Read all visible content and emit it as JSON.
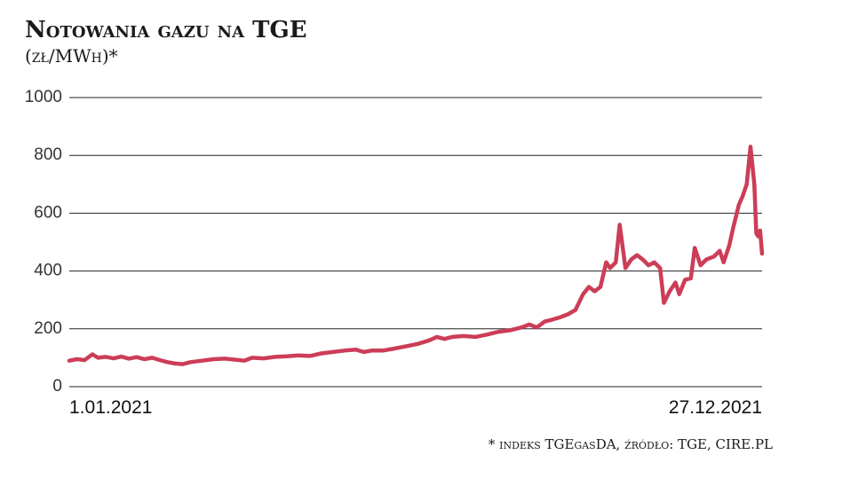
{
  "chart_data": {
    "type": "line",
    "title": "Notowania gazu na TGE",
    "subtitle": "(zł/MWh)*",
    "note": "* indeks TGEgasDA, źródło: TGE, CIRE.PL",
    "x": [
      1,
      5,
      9,
      13,
      16,
      20,
      24,
      28,
      32,
      36,
      40,
      44,
      48,
      52,
      56,
      60,
      64,
      70,
      76,
      82,
      88,
      92,
      96,
      102,
      108,
      114,
      120,
      126,
      132,
      138,
      144,
      150,
      154,
      158,
      164,
      170,
      176,
      182,
      188,
      192,
      196,
      200,
      206,
      212,
      218,
      224,
      230,
      236,
      240,
      244,
      248,
      252,
      256,
      260,
      264,
      268,
      271,
      274,
      277,
      280,
      282,
      285,
      287,
      290,
      293,
      296,
      299,
      302,
      305,
      308,
      310,
      313,
      316,
      318,
      321,
      324,
      326,
      329,
      332,
      336,
      339,
      341,
      344,
      346,
      349,
      351,
      353,
      355,
      357,
      358,
      359,
      360,
      361
    ],
    "series": [
      {
        "name": "TGEgasDA",
        "color": "#cc3d57",
        "values": [
          90,
          95,
          92,
          112,
          100,
          103,
          98,
          104,
          97,
          102,
          95,
          100,
          92,
          85,
          80,
          78,
          85,
          90,
          95,
          97,
          93,
          90,
          100,
          98,
          103,
          105,
          108,
          106,
          115,
          120,
          125,
          128,
          120,
          125,
          125,
          132,
          140,
          148,
          160,
          172,
          165,
          172,
          175,
          172,
          180,
          190,
          195,
          205,
          215,
          205,
          225,
          232,
          240,
          250,
          265,
          320,
          345,
          330,
          345,
          430,
          410,
          430,
          560,
          410,
          440,
          455,
          440,
          420,
          430,
          410,
          290,
          330,
          360,
          320,
          370,
          375,
          480,
          420,
          440,
          450,
          470,
          430,
          490,
          550,
          630,
          660,
          700,
          830,
          700,
          530,
          520,
          540,
          460
        ]
      }
    ],
    "xlim": [
      1,
      361
    ],
    "xticks": [
      {
        "value": 1,
        "label": "1.01.2021"
      },
      {
        "value": 361,
        "label": "27.12.2021"
      }
    ],
    "ylim": [
      0,
      1000
    ],
    "yticks": [
      0,
      200,
      400,
      600,
      800,
      1000
    ],
    "grid": true
  }
}
